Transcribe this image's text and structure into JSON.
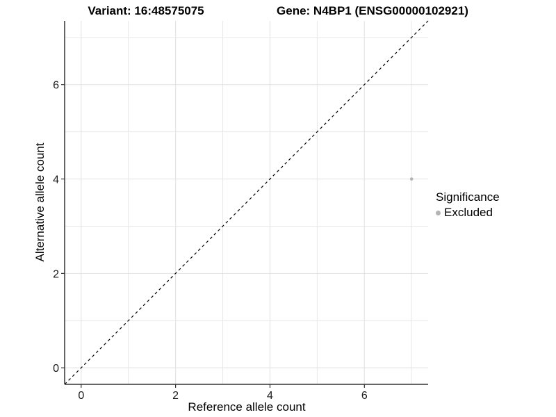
{
  "chart_data": {
    "type": "scatter",
    "titles": {
      "left": "Variant: 16:48575075",
      "right": "Gene: N4BP1 (ENSG00000102921)"
    },
    "xlabel": "Reference allele count",
    "ylabel": "Alternative allele count",
    "xlim": [
      -0.35,
      7.35
    ],
    "ylim": [
      -0.35,
      7.35
    ],
    "x_ticks": [
      0,
      2,
      4,
      6
    ],
    "y_ticks": [
      0,
      2,
      4,
      6
    ],
    "x_minor": [
      1,
      3,
      5,
      7
    ],
    "y_minor": [
      1,
      3,
      5,
      7
    ],
    "grid": "major+minor",
    "series": [
      {
        "name": "Excluded",
        "color": "#b3b3b3",
        "points": [
          {
            "x": 7,
            "y": 4
          }
        ]
      }
    ],
    "reference_line": {
      "equation": "y = x",
      "style": "dashed",
      "color": "#000000"
    },
    "legend": {
      "title": "Significance",
      "position": "right-middle",
      "entries": [
        {
          "label": "Excluded",
          "color": "#b3b3b3"
        }
      ]
    },
    "colors": {
      "background": "#ffffff",
      "grid_major": "#e3e3e3",
      "grid_minor": "#e8e8e8",
      "axis_line": "#333333",
      "point": "#b3b3b3"
    }
  }
}
